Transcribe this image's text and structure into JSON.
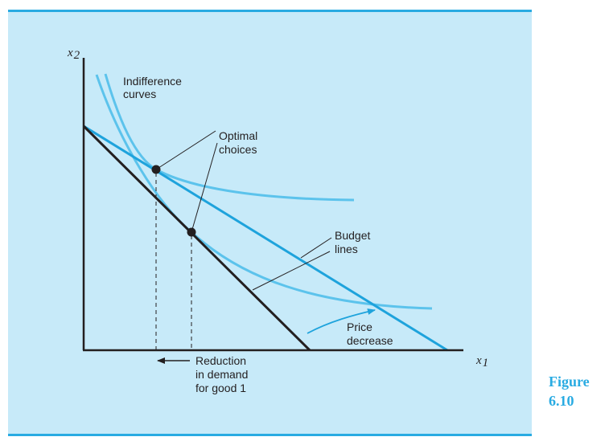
{
  "figure": {
    "word": "Figure",
    "number": "6.10"
  },
  "axes": {
    "x_symbol": "x",
    "x_sub": "1",
    "y_symbol": "x",
    "y_sub": "2"
  },
  "labels": {
    "indifference": [
      "Indifference",
      "curves"
    ],
    "optimal": [
      "Optimal",
      "choices"
    ],
    "budget": [
      "Budget",
      "lines"
    ],
    "price": [
      "Price",
      "decrease"
    ],
    "reduction": [
      "Reduction",
      "in demand",
      "for good 1"
    ]
  },
  "colors": {
    "panel": "#c7eaf9",
    "rule": "#29abe2",
    "budget_new": "#1ea3dc",
    "budget_old": "#231f20",
    "indifference": "#5cc3ec",
    "caption": "#29abe2"
  }
}
